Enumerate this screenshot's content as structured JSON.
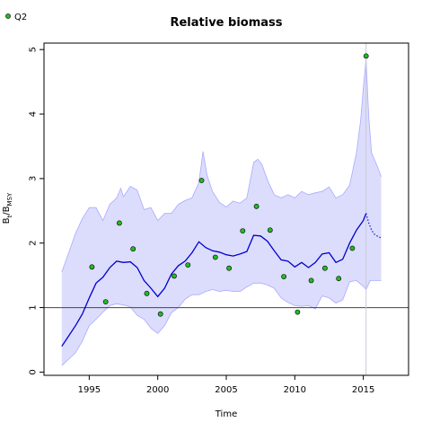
{
  "chart_data": {
    "type": "scatter",
    "title": "Relative biomass",
    "xlabel": "Time",
    "ylabel_main": "B",
    "ylabel_sub1": "t",
    "ylabel_mid": "/B",
    "ylabel_sub2": "MSY",
    "xlim": [
      1991.7,
      2018.3
    ],
    "ylim": [
      -0.05,
      5.1
    ],
    "xticks": [
      1995,
      2000,
      2005,
      2010,
      2015
    ],
    "yticks": [
      0,
      1,
      2,
      3,
      4,
      5
    ],
    "reference_line_y": 1,
    "vertical_line_x": 2015.2,
    "legend": {
      "position": "top-left",
      "entries": [
        "Q2"
      ]
    },
    "colors": {
      "band": "#dcdcfc",
      "band_edge": "#aaaaff",
      "line": "#0000cc",
      "point_fill": "#22bb22",
      "point_edge": "#000000",
      "ref_line": "#444444",
      "vline": "#c8c8d8"
    },
    "observations": {
      "name": "Q2",
      "x": [
        1995.2,
        1996.2,
        1997.2,
        1998.2,
        1999.2,
        2000.2,
        2001.2,
        2002.2,
        2003.2,
        2004.2,
        2005.2,
        2006.2,
        2007.2,
        2008.2,
        2009.2,
        2010.2,
        2011.2,
        2012.2,
        2013.2,
        2014.2,
        2015.2
      ],
      "y": [
        1.63,
        1.09,
        2.31,
        1.91,
        1.22,
        0.9,
        1.49,
        1.66,
        2.97,
        1.78,
        1.61,
        2.19,
        2.57,
        2.2,
        1.48,
        0.93,
        1.42,
        1.61,
        1.45,
        1.92,
        4.9
      ]
    },
    "estimate": {
      "x": [
        1993.0,
        1994.0,
        1994.5,
        1995.0,
        1995.5,
        1996.0,
        1996.5,
        1997.0,
        1997.5,
        1998.0,
        1998.5,
        1999.0,
        1999.5,
        2000.0,
        2000.5,
        2001.0,
        2001.5,
        2002.0,
        2002.5,
        2003.0,
        2003.5,
        2004.0,
        2004.5,
        2005.0,
        2005.5,
        2006.0,
        2006.5,
        2007.0,
        2007.5,
        2008.0,
        2008.5,
        2009.0,
        2009.5,
        2010.0,
        2010.5,
        2011.0,
        2011.5,
        2012.0,
        2012.5,
        2013.0,
        2013.5,
        2014.0,
        2014.5,
        2015.0,
        2015.2
      ],
      "y": [
        0.4,
        0.72,
        0.9,
        1.15,
        1.38,
        1.47,
        1.62,
        1.72,
        1.7,
        1.71,
        1.62,
        1.42,
        1.3,
        1.17,
        1.3,
        1.52,
        1.65,
        1.72,
        1.85,
        2.02,
        1.93,
        1.88,
        1.86,
        1.82,
        1.8,
        1.83,
        1.87,
        2.12,
        2.11,
        2.03,
        1.88,
        1.74,
        1.72,
        1.63,
        1.7,
        1.62,
        1.7,
        1.83,
        1.85,
        1.7,
        1.75,
        2.0,
        2.2,
        2.35,
        2.46
      ]
    },
    "forecast": {
      "x": [
        2015.2,
        2015.4,
        2015.6,
        2015.8,
        2016.0,
        2016.3
      ],
      "y": [
        2.46,
        2.31,
        2.2,
        2.14,
        2.11,
        2.08
      ]
    },
    "ci_upper": {
      "x": [
        1993.0,
        1993.5,
        1994.0,
        1994.5,
        1995.0,
        1995.5,
        1996.0,
        1996.5,
        1997.0,
        1997.3,
        1997.5,
        1998.0,
        1998.5,
        1999.0,
        1999.5,
        2000.0,
        2000.5,
        2001.0,
        2001.5,
        2002.0,
        2002.5,
        2003.0,
        2003.3,
        2003.6,
        2004.0,
        2004.5,
        2005.0,
        2005.5,
        2006.0,
        2006.5,
        2007.0,
        2007.3,
        2007.6,
        2008.0,
        2008.5,
        2009.0,
        2009.5,
        2010.0,
        2010.5,
        2011.0,
        2011.5,
        2012.0,
        2012.5,
        2013.0,
        2013.5,
        2014.0,
        2014.5,
        2014.8,
        2015.0,
        2015.2,
        2015.4,
        2015.6,
        2016.0,
        2016.3
      ],
      "y": [
        1.55,
        1.85,
        2.15,
        2.38,
        2.55,
        2.55,
        2.35,
        2.6,
        2.7,
        2.85,
        2.72,
        2.88,
        2.82,
        2.52,
        2.55,
        2.35,
        2.46,
        2.46,
        2.6,
        2.66,
        2.7,
        2.94,
        3.42,
        3.05,
        2.8,
        2.63,
        2.56,
        2.65,
        2.62,
        2.7,
        3.25,
        3.3,
        3.22,
        2.98,
        2.75,
        2.7,
        2.75,
        2.7,
        2.8,
        2.75,
        2.78,
        2.8,
        2.87,
        2.7,
        2.75,
        2.9,
        3.4,
        3.9,
        4.4,
        4.85,
        3.95,
        3.4,
        3.2,
        3.03
      ]
    },
    "ci_lower": {
      "x": [
        1993.0,
        1993.5,
        1994.0,
        1994.5,
        1995.0,
        1995.5,
        1996.0,
        1996.5,
        1997.0,
        1997.5,
        1998.0,
        1998.5,
        1999.0,
        1999.5,
        2000.0,
        2000.5,
        2001.0,
        2001.5,
        2002.0,
        2002.5,
        2003.0,
        2003.5,
        2004.0,
        2004.5,
        2005.0,
        2005.5,
        2006.0,
        2006.5,
        2007.0,
        2007.5,
        2008.0,
        2008.5,
        2009.0,
        2009.5,
        2010.0,
        2010.5,
        2011.0,
        2011.5,
        2012.0,
        2012.5,
        2013.0,
        2013.5,
        2014.0,
        2014.5,
        2015.0,
        2015.2,
        2015.5,
        2016.0,
        2016.3
      ],
      "y": [
        0.1,
        0.2,
        0.3,
        0.48,
        0.72,
        0.82,
        0.93,
        1.03,
        1.06,
        1.04,
        1.01,
        0.88,
        0.82,
        0.68,
        0.6,
        0.72,
        0.92,
        1.0,
        1.13,
        1.2,
        1.2,
        1.25,
        1.28,
        1.25,
        1.27,
        1.25,
        1.25,
        1.32,
        1.38,
        1.38,
        1.35,
        1.3,
        1.15,
        1.08,
        1.03,
        1.02,
        1.03,
        0.98,
        1.18,
        1.15,
        1.07,
        1.12,
        1.4,
        1.42,
        1.33,
        1.28,
        1.42,
        1.42,
        1.42
      ]
    }
  }
}
